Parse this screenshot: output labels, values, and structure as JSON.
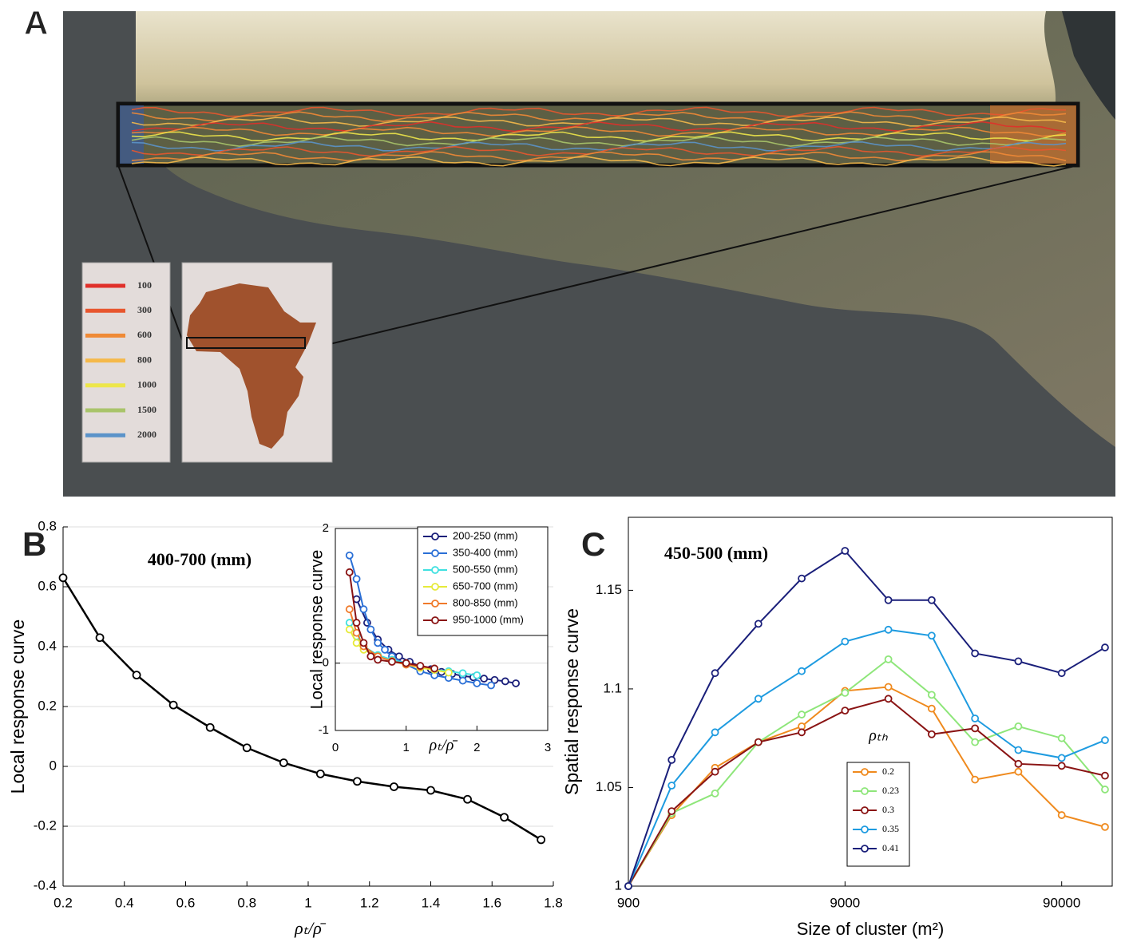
{
  "map": {
    "label": "A",
    "legend": {
      "values": [
        100,
        300,
        600,
        800,
        1000,
        1500,
        2000
      ],
      "colors": [
        "#e0302a",
        "#e8562e",
        "#ef8a36",
        "#f5b94a",
        "#ede64a",
        "#a9c46a",
        "#5b93c9"
      ]
    }
  },
  "chart_data": [
    {
      "type": "line",
      "label": "B",
      "annotation": "400-700 (mm)",
      "x_label": "ρₜ/ρ̄",
      "y_label": "Local response curve",
      "x": [
        0.2,
        0.32,
        0.44,
        0.56,
        0.68,
        0.8,
        0.92,
        1.04,
        1.16,
        1.28,
        1.4,
        1.52,
        1.64,
        1.76
      ],
      "values": [
        0.63,
        0.43,
        0.305,
        0.205,
        0.13,
        0.062,
        0.012,
        -0.025,
        -0.05,
        -0.068,
        -0.08,
        -0.11,
        -0.17,
        -0.245
      ],
      "color": "#000000",
      "xlim": [
        0.2,
        1.8
      ],
      "xticks": [
        0.2,
        0.4,
        0.6,
        0.8,
        1,
        1.2,
        1.4,
        1.6,
        1.8
      ],
      "ylim": [
        -0.4,
        0.8
      ],
      "yticks": [
        -0.4,
        -0.2,
        0,
        0.2,
        0.4,
        0.6,
        0.8
      ],
      "grid": true
    },
    {
      "type": "line",
      "x_label": "ρₜ/ρ̄",
      "y_label": "Local response curve",
      "legend": "upper right",
      "series": [
        {
          "name": "200-250 (mm)",
          "color": "#1a1f7a",
          "x": [
            0.3,
            0.45,
            0.6,
            0.75,
            0.9,
            1.05,
            1.2,
            1.35,
            1.5,
            1.65,
            1.8,
            1.95,
            2.1,
            2.25,
            2.4,
            2.55
          ],
          "values": [
            0.95,
            0.6,
            0.35,
            0.2,
            0.1,
            0.02,
            -0.05,
            -0.09,
            -0.13,
            -0.16,
            -0.19,
            -0.21,
            -0.23,
            -0.25,
            -0.27,
            -0.3
          ]
        },
        {
          "name": "350-400 (mm)",
          "color": "#2a6fd6",
          "x": [
            0.2,
            0.3,
            0.4,
            0.5,
            0.6,
            0.7,
            0.8,
            1.0,
            1.2,
            1.4,
            1.6,
            1.8,
            2.0,
            2.2
          ],
          "values": [
            1.6,
            1.25,
            0.8,
            0.5,
            0.3,
            0.2,
            0.1,
            -0.02,
            -0.12,
            -0.18,
            -0.22,
            -0.26,
            -0.3,
            -0.33
          ]
        },
        {
          "name": "500-550 (mm)",
          "color": "#3fe0e0",
          "x": [
            0.2,
            0.3,
            0.4,
            0.6,
            0.8,
            1.0,
            1.2,
            1.4,
            1.6,
            1.8,
            2.0
          ],
          "values": [
            0.6,
            0.4,
            0.25,
            0.12,
            0.05,
            0.0,
            -0.06,
            -0.1,
            -0.12,
            -0.15,
            -0.18
          ]
        },
        {
          "name": "650-700 (mm)",
          "color": "#e6ea3a",
          "x": [
            0.2,
            0.3,
            0.4,
            0.6,
            0.8,
            1.0,
            1.2,
            1.4,
            1.6
          ],
          "values": [
            0.5,
            0.3,
            0.2,
            0.1,
            0.03,
            -0.02,
            -0.07,
            -0.1,
            -0.14
          ]
        },
        {
          "name": "800-850 (mm)",
          "color": "#f07a2a",
          "x": [
            0.2,
            0.3,
            0.4,
            0.6,
            0.8,
            1.0,
            1.2,
            1.4
          ],
          "values": [
            0.8,
            0.45,
            0.25,
            0.1,
            0.03,
            -0.02,
            -0.05,
            -0.08
          ]
        },
        {
          "name": "950-1000 (mm)",
          "color": "#8a1414",
          "x": [
            0.2,
            0.3,
            0.4,
            0.5,
            0.6,
            0.8,
            1.0,
            1.2,
            1.4
          ],
          "values": [
            1.35,
            0.6,
            0.3,
            0.1,
            0.05,
            0.02,
            0.0,
            -0.04,
            -0.08
          ]
        }
      ],
      "xlim": [
        0,
        3
      ],
      "xticks": [
        0,
        1,
        2,
        3
      ],
      "ylim": [
        -1,
        2
      ],
      "yticks": [
        -1,
        0,
        2
      ],
      "grid": true
    },
    {
      "type": "line",
      "label": "C",
      "annotation": "450-500 (mm)",
      "x_label": "Size of cluster (m²)",
      "y_label": "Spatial response curve",
      "legend": "lower center",
      "legend_title": "ρₜₕ",
      "log_x": true,
      "x": [
        900,
        1426,
        2261,
        3583,
        5679,
        9000,
        14264,
        22607,
        35830,
        56787,
        90000,
        142640
      ],
      "series": [
        {
          "name": "0.2",
          "color": "#ef8a1e",
          "values": [
            1,
            1.036,
            1.06,
            1.073,
            1.081,
            1.099,
            1.101,
            1.09,
            1.054,
            1.058,
            1.036,
            1.03
          ]
        },
        {
          "name": "0.23",
          "color": "#8ee67a",
          "values": [
            1,
            1.037,
            1.047,
            1.073,
            1.087,
            1.098,
            1.115,
            1.097,
            1.073,
            1.081,
            1.075,
            1.049
          ]
        },
        {
          "name": "0.3",
          "color": "#8a1414",
          "values": [
            1,
            1.038,
            1.058,
            1.073,
            1.078,
            1.089,
            1.095,
            1.077,
            1.08,
            1.062,
            1.061,
            1.056
          ]
        },
        {
          "name": "0.35",
          "color": "#1e9be0",
          "values": [
            1,
            1.051,
            1.078,
            1.095,
            1.109,
            1.124,
            1.13,
            1.127,
            1.085,
            1.069,
            1.065,
            1.074
          ]
        },
        {
          "name": "0.41",
          "color": "#1a1f7a",
          "values": [
            1,
            1.064,
            1.108,
            1.133,
            1.156,
            1.17,
            1.145,
            1.145,
            1.118,
            1.114,
            1.108,
            1.121
          ]
        }
      ],
      "xlim": [
        900,
        154000
      ],
      "xticks": [
        900,
        9000,
        90000
      ],
      "ylim": [
        1,
        1.187
      ],
      "yticks": [
        1,
        1.05,
        1.1,
        1.15
      ],
      "grid": false
    }
  ]
}
